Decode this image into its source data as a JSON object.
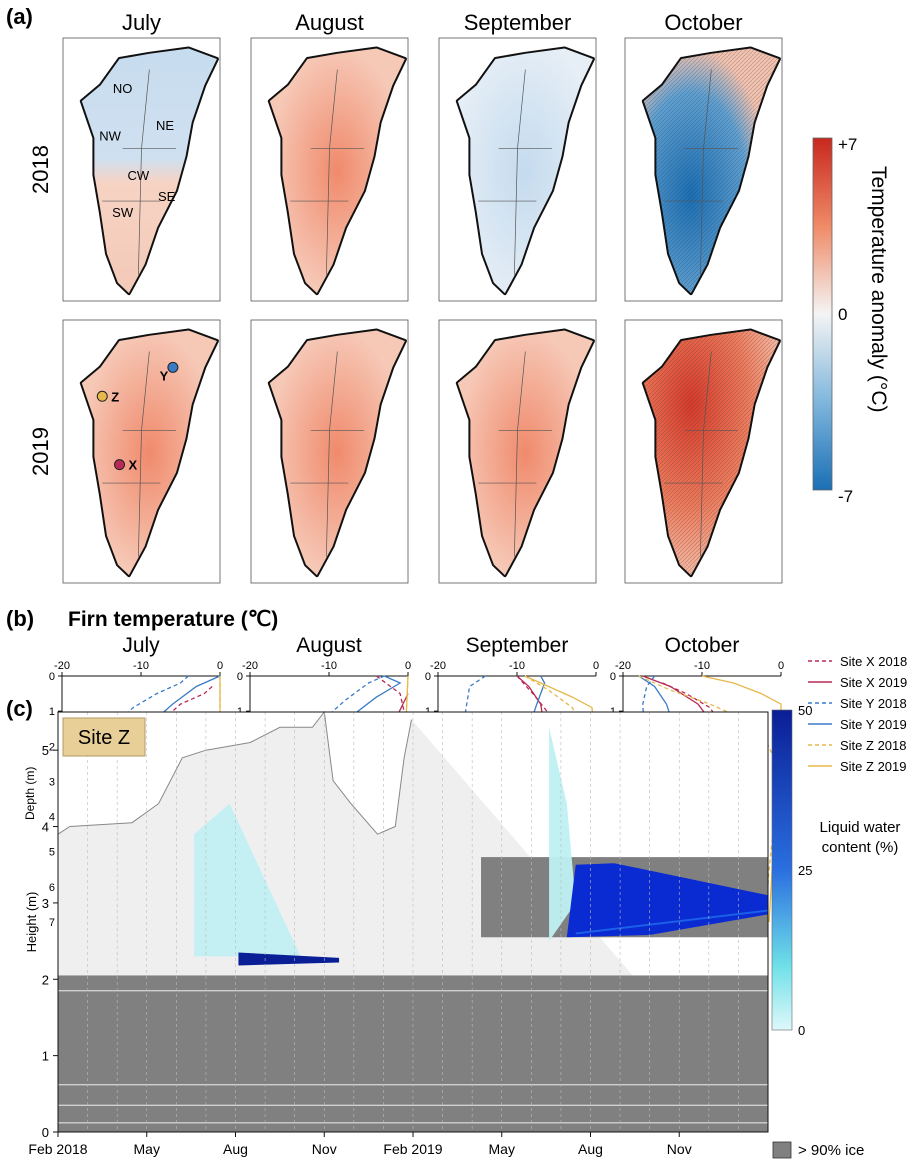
{
  "panel_a": {
    "label": "(a)",
    "columns": [
      "July",
      "August",
      "September",
      "October"
    ],
    "rows": [
      "2018",
      "2019"
    ],
    "regions": [
      "NO",
      "NE",
      "NW",
      "CW",
      "SE",
      "SW"
    ],
    "sites": [
      {
        "name": "Z",
        "color": "#e6b84a"
      },
      {
        "name": "Y",
        "color": "#3a7bc8"
      },
      {
        "name": "X",
        "color": "#b82a55"
      }
    ],
    "colorbar": {
      "title": "Temperature anomaly (°C)",
      "max_label": "+7",
      "mid_label": "0",
      "min_label": "-7",
      "range": [
        -7,
        7
      ],
      "colors": {
        "max": "#c8281f",
        "mid": "#f4f4f4",
        "min": "#1a6fb5"
      }
    },
    "anomaly_sign": [
      [
        "mixed",
        "warm",
        "cool",
        "cold"
      ],
      [
        "warm",
        "warm",
        "warm",
        "very warm"
      ]
    ]
  },
  "panel_b": {
    "label": "(b)",
    "title": "Firn temperature (℃)",
    "months": [
      "July",
      "August",
      "September",
      "October"
    ],
    "ylabel": "Depth (m)",
    "xticks": [
      "-20",
      "-10",
      "0"
    ],
    "yticks": [
      "0",
      "1",
      "2",
      "3",
      "4",
      "5",
      "6",
      "7"
    ],
    "legend": [
      {
        "name": "Site X 2018",
        "color": "#b82a55",
        "dash": true
      },
      {
        "name": "Site X 2019",
        "color": "#b82a55",
        "dash": false
      },
      {
        "name": "Site Y 2018",
        "color": "#3a7bc8",
        "dash": true
      },
      {
        "name": "Site Y 2019",
        "color": "#3a7bc8",
        "dash": false
      },
      {
        "name": "Site Z 2018",
        "color": "#e6b84a",
        "dash": true
      },
      {
        "name": "Site Z 2019",
        "color": "#e6b84a",
        "dash": false
      }
    ]
  },
  "chart_data": [
    {
      "type": "line",
      "title": "July",
      "xlabel": "",
      "ylabel": "Depth (m)",
      "xlim": [
        -20,
        0
      ],
      "ylim": [
        7,
        0
      ],
      "series": [
        {
          "name": "Site X 2018",
          "values": [
            [
              -1,
              0.3
            ],
            [
              -2,
              0.5
            ],
            [
              -5,
              0.8
            ],
            [
              -7,
              1.2
            ],
            [
              -8.5,
              1.8
            ],
            [
              -9.5,
              3
            ],
            [
              -10.5,
              4.5
            ],
            [
              -11,
              6
            ],
            [
              -11,
              7
            ]
          ]
        },
        {
          "name": "Site X 2019",
          "values": [
            [
              0,
              1.2
            ],
            [
              -1,
              1.5
            ],
            [
              -3.5,
              2.2
            ],
            [
              -6,
              3
            ],
            [
              -8,
              3.8
            ],
            [
              -9.5,
              4.8
            ],
            [
              -10.5,
              6
            ],
            [
              -11,
              7
            ]
          ]
        },
        {
          "name": "Site Y 2018",
          "values": [
            [
              -4,
              0
            ],
            [
              -5,
              0.2
            ],
            [
              -8,
              0.5
            ],
            [
              -11,
              0.9
            ],
            [
              -13.5,
              1.4
            ],
            [
              -16,
              2.2
            ],
            [
              -17.5,
              3.3
            ],
            [
              -18.3,
              5
            ],
            [
              -18.6,
              7
            ]
          ]
        },
        {
          "name": "Site Y 2019",
          "values": [
            [
              0,
              0
            ],
            [
              -3,
              0.3
            ],
            [
              -6,
              0.8
            ],
            [
              -9,
              1.4
            ],
            [
              -12,
              2.1
            ],
            [
              -14.5,
              3
            ],
            [
              -16.5,
              4
            ],
            [
              -17.5,
              5
            ],
            [
              -18,
              6
            ],
            [
              -18.3,
              7
            ]
          ]
        },
        {
          "name": "Site Z 2018",
          "values": [
            [
              0,
              0
            ],
            [
              0,
              2
            ],
            [
              -0.5,
              2.8
            ],
            [
              -1.5,
              3.8
            ],
            [
              -2.5,
              5
            ],
            [
              -3,
              6
            ],
            [
              -3,
              7
            ]
          ]
        },
        {
          "name": "Site Z 2019",
          "values": [
            [
              0,
              0
            ],
            [
              0,
              1.3
            ],
            [
              -0.5,
              2.5
            ],
            [
              -1.5,
              3.8
            ],
            [
              -2.8,
              5
            ],
            [
              -3.5,
              6
            ],
            [
              -3.8,
              7
            ]
          ]
        }
      ]
    },
    {
      "type": "line",
      "title": "August",
      "xlabel": "",
      "ylabel": "Depth (m)",
      "xlim": [
        -20,
        0
      ],
      "ylim": [
        7,
        0
      ],
      "series": [
        {
          "name": "Site X 2018",
          "values": [
            [
              -4,
              0
            ],
            [
              -1,
              0.5
            ],
            [
              -0.5,
              1
            ],
            [
              -1,
              1.5
            ],
            [
              -3,
              2.5
            ],
            [
              -5.5,
              3.5
            ],
            [
              -8,
              4.5
            ],
            [
              -9.5,
              5.5
            ],
            [
              -10,
              6.5
            ],
            [
              -10.2,
              7
            ]
          ]
        },
        {
          "name": "Site X 2019",
          "values": [
            [
              0,
              0.5
            ],
            [
              -1.5,
              1.2
            ],
            [
              -4,
              2
            ],
            [
              -6.5,
              3
            ],
            [
              -8.5,
              4
            ],
            [
              -9.5,
              5
            ],
            [
              -10,
              6
            ],
            [
              -10,
              7
            ]
          ]
        },
        {
          "name": "Site Y 2018",
          "values": [
            [
              -3,
              0
            ],
            [
              -5,
              0.2
            ],
            [
              -8,
              0.7
            ],
            [
              -11,
              1.3
            ],
            [
              -14,
              2.2
            ],
            [
              -16,
              3.2
            ],
            [
              -17.2,
              4.5
            ],
            [
              -17.8,
              6
            ],
            [
              -18,
              7
            ]
          ]
        },
        {
          "name": "Site Y 2019",
          "values": [
            [
              -3,
              0
            ],
            [
              -1,
              0.2
            ],
            [
              -4,
              0.6
            ],
            [
              -7.5,
              1.2
            ],
            [
              -11,
              2.1
            ],
            [
              -14,
              3.2
            ],
            [
              -16,
              4.4
            ],
            [
              -17,
              5.5
            ],
            [
              -17.8,
              7
            ]
          ]
        },
        {
          "name": "Site Z 2018",
          "values": [
            [
              0,
              0
            ],
            [
              -0.3,
              1.5
            ],
            [
              -1,
              2.8
            ],
            [
              -2,
              4
            ],
            [
              -2.7,
              5.5
            ],
            [
              -3,
              7
            ]
          ]
        },
        {
          "name": "Site Z 2019",
          "values": [
            [
              0,
              0
            ],
            [
              -0.3,
              1.5
            ],
            [
              -1,
              2.8
            ],
            [
              -2,
              4.2
            ],
            [
              -2.8,
              5.5
            ],
            [
              -3.2,
              7
            ]
          ]
        }
      ]
    },
    {
      "type": "line",
      "title": "September",
      "xlabel": "",
      "ylabel": "Depth (m)",
      "xlim": [
        -20,
        0
      ],
      "ylim": [
        7,
        0
      ],
      "series": [
        {
          "name": "Site X 2018",
          "values": [
            [
              -10,
              0
            ],
            [
              -8,
              0.5
            ],
            [
              -5.5,
              1.2
            ],
            [
              -4.5,
              2
            ],
            [
              -5,
              3
            ],
            [
              -6.5,
              4.5
            ],
            [
              -7.5,
              5.5
            ],
            [
              -8,
              6.5
            ],
            [
              -8.3,
              7
            ]
          ]
        },
        {
          "name": "Site X 2019",
          "values": [
            [
              -10,
              0
            ],
            [
              -8.5,
              0.3
            ],
            [
              -7,
              0.8
            ],
            [
              -6.5,
              1.5
            ],
            [
              -6.8,
              2.5
            ],
            [
              -7.5,
              3.8
            ],
            [
              -8.2,
              5
            ],
            [
              -8.5,
              6
            ],
            [
              -8.7,
              7
            ]
          ]
        },
        {
          "name": "Site Y 2018",
          "values": [
            [
              -14,
              0
            ],
            [
              -16,
              0.3
            ],
            [
              -16.5,
              1
            ],
            [
              -16.7,
              3
            ],
            [
              -16.8,
              5
            ],
            [
              -16.8,
              7
            ]
          ]
        },
        {
          "name": "Site Y 2019",
          "values": [
            [
              -7,
              0
            ],
            [
              -6.5,
              0.2
            ],
            [
              -7.5,
              0.8
            ],
            [
              -9,
              1.8
            ],
            [
              -11,
              3
            ],
            [
              -13,
              4.2
            ],
            [
              -14.5,
              5.3
            ],
            [
              -15.5,
              6.3
            ],
            [
              -16,
              7
            ]
          ]
        },
        {
          "name": "Site Z 2018",
          "values": [
            [
              -9,
              0
            ],
            [
              -6,
              0.4
            ],
            [
              -3,
              0.9
            ],
            [
              -1.5,
              1.5
            ],
            [
              -1.5,
              2.5
            ],
            [
              -2,
              4
            ],
            [
              -2.6,
              5.5
            ],
            [
              -3,
              7
            ]
          ]
        },
        {
          "name": "Site Z 2019",
          "values": [
            [
              -9,
              0
            ],
            [
              -6,
              0.3
            ],
            [
              -3,
              0.6
            ],
            [
              -0.5,
              0.9
            ],
            [
              -0.3,
              1.5
            ],
            [
              -1,
              3
            ],
            [
              -2,
              4.5
            ],
            [
              -2.8,
              6
            ],
            [
              -3,
              7
            ]
          ]
        }
      ]
    },
    {
      "type": "line",
      "title": "October",
      "xlabel": "",
      "ylabel": "Depth (m)",
      "xlim": [
        -20,
        0
      ],
      "ylim": [
        7,
        0
      ],
      "series": [
        {
          "name": "Site X 2018",
          "values": [
            [
              -15,
              0.2
            ],
            [
              -12,
              0.5
            ],
            [
              -9,
              0.9
            ],
            [
              -7.5,
              1.4
            ],
            [
              -6.5,
              2.2
            ],
            [
              -6.5,
              3.5
            ],
            [
              -7,
              5
            ],
            [
              -7,
              7
            ]
          ]
        },
        {
          "name": "Site X 2019",
          "values": [
            [
              -17.5,
              0
            ],
            [
              -14,
              0.3
            ],
            [
              -10.5,
              0.8
            ],
            [
              -8.5,
              1.4
            ],
            [
              -7.5,
              2.2
            ],
            [
              -7.5,
              3.5
            ],
            [
              -7.5,
              5
            ],
            [
              -7.5,
              7
            ]
          ]
        },
        {
          "name": "Site Y 2018",
          "values": [
            [
              -16,
              0
            ],
            [
              -17,
              0.3
            ],
            [
              -17.5,
              0.8
            ],
            [
              -17.2,
              2
            ],
            [
              -17,
              4
            ],
            [
              -17,
              7
            ]
          ]
        },
        {
          "name": "Site Y 2019",
          "values": [
            [
              -18,
              0
            ],
            [
              -16,
              0.3
            ],
            [
              -14.5,
              0.8
            ],
            [
              -13.5,
              1.5
            ],
            [
              -13.5,
              2.5
            ],
            [
              -14,
              3.8
            ],
            [
              -15,
              5
            ],
            [
              -15.5,
              6
            ],
            [
              -15.8,
              7
            ]
          ]
        },
        {
          "name": "Site Z 2018",
          "values": [
            [
              -18,
              0
            ],
            [
              -14,
              0.4
            ],
            [
              -9,
              0.8
            ],
            [
              -5,
              1.2
            ],
            [
              -2,
              1.8
            ],
            [
              -0.5,
              2.5
            ],
            [
              -0.8,
              4
            ],
            [
              -1.5,
              5.5
            ],
            [
              -2,
              7
            ]
          ]
        },
        {
          "name": "Site Z 2019",
          "values": [
            [
              -10,
              0
            ],
            [
              -6,
              0.2
            ],
            [
              -2.5,
              0.5
            ],
            [
              0,
              0.8
            ],
            [
              0,
              2
            ],
            [
              -0.5,
              3.5
            ],
            [
              -1,
              5
            ],
            [
              -1.5,
              7
            ]
          ]
        }
      ]
    },
    {
      "type": "area",
      "title": "Site Z",
      "xlabel": "",
      "ylabel": "Height (m)",
      "ylim": [
        0,
        5.5
      ],
      "xticks": [
        "Feb 2018",
        "May",
        "Aug",
        "Nov",
        "Feb 2019",
        "May",
        "Aug",
        "Nov"
      ],
      "yticks": [
        "0",
        "1",
        "2",
        "3",
        "4",
        "5"
      ],
      "colorbar": {
        "title": "Liquid water content (%)",
        "ticks": [
          "50",
          "25",
          "0"
        ],
        "range": [
          0,
          50
        ]
      },
      "ice_legend": "> 90% ice",
      "surface_height": [
        [
          0,
          3.9
        ],
        [
          0.4,
          4.0
        ],
        [
          2.5,
          4.05
        ],
        [
          3.4,
          4.3
        ],
        [
          4.2,
          4.9
        ],
        [
          5,
          5.0
        ],
        [
          6.5,
          5.1
        ],
        [
          7.5,
          5.3
        ],
        [
          8.6,
          5.3
        ],
        [
          9,
          5.5
        ],
        [
          9.3,
          4.6
        ],
        [
          9.9,
          4.3
        ],
        [
          10.8,
          3.9
        ],
        [
          11.4,
          4.0
        ],
        [
          11.7,
          4.9
        ],
        [
          11.95,
          5.4
        ]
      ],
      "wet_layers": [
        {
          "period": "Aug-Nov 2018",
          "bottom": 2.25,
          "top": 2.35,
          "lwc": "high"
        },
        {
          "period": "Jul 2019-Jan 2020",
          "bottom": 2.5,
          "top": 3.5,
          "lwc": "high"
        }
      ]
    }
  ],
  "panel_c": {
    "label": "(c)",
    "site_label": "Site Z"
  }
}
